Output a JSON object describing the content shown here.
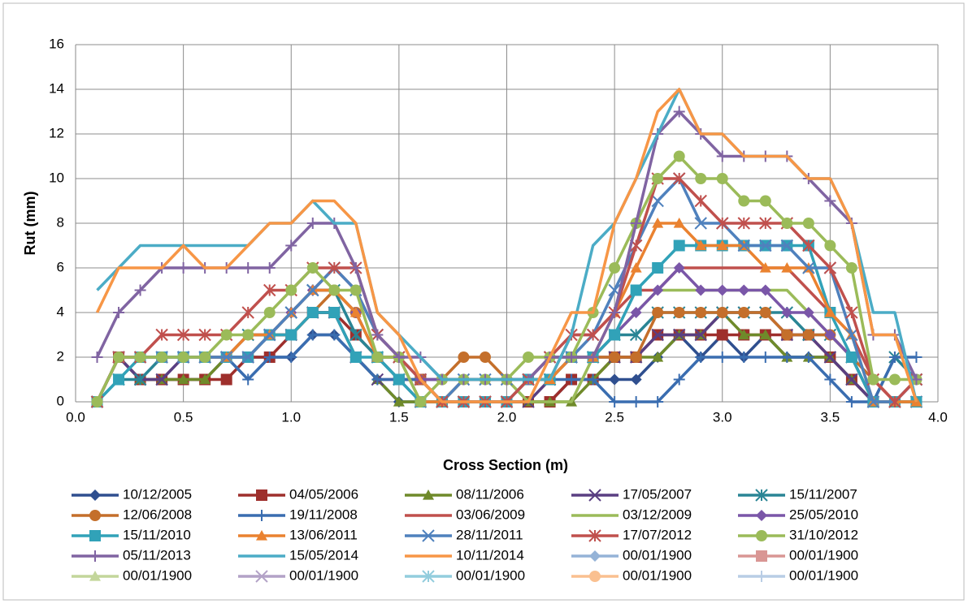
{
  "chart_data": {
    "type": "line",
    "x_label": "Cross Section (m)",
    "y_label": "Rut (mm)",
    "x": [
      0.1,
      0.2,
      0.3,
      0.4,
      0.5,
      0.6,
      0.7,
      0.8,
      0.9,
      1.0,
      1.1,
      1.2,
      1.3,
      1.4,
      1.5,
      1.6,
      1.7,
      1.8,
      1.9,
      2.0,
      2.1,
      2.2,
      2.3,
      2.4,
      2.5,
      2.6,
      2.7,
      2.8,
      2.9,
      3.0,
      3.1,
      3.2,
      3.3,
      3.4,
      3.5,
      3.6,
      3.7,
      3.8,
      3.9
    ],
    "xlim": [
      0,
      4
    ],
    "xticks": [
      {
        "value": 0,
        "label": "0.0"
      },
      {
        "value": 0.5,
        "label": "0.5"
      },
      {
        "value": 1,
        "label": "1.0"
      },
      {
        "value": 1.5,
        "label": "1.5"
      },
      {
        "value": 2,
        "label": "2.0"
      },
      {
        "value": 2.5,
        "label": "2.5"
      },
      {
        "value": 3,
        "label": "3.0"
      },
      {
        "value": 3.5,
        "label": "3.5"
      },
      {
        "value": 4,
        "label": "4.0"
      }
    ],
    "ylim": [
      0,
      16
    ],
    "yticks": [
      0,
      2,
      4,
      6,
      8,
      10,
      12,
      14,
      16
    ],
    "grid": true,
    "legend": "bottom",
    "series": [
      {
        "name": "10/12/2005",
        "color": "#2f4f8f",
        "marker": "diamond",
        "values": [
          0,
          2,
          1,
          1,
          1,
          1,
          2,
          2,
          2,
          2,
          3,
          3,
          2,
          1,
          0,
          0,
          0,
          0,
          0,
          0,
          0,
          0,
          1,
          1,
          1,
          1,
          2,
          3,
          2,
          3,
          2,
          3,
          2,
          2,
          2,
          1,
          0,
          0,
          0
        ]
      },
      {
        "name": "04/05/2006",
        "color": "#9e2f2c",
        "marker": "square",
        "values": [
          0,
          2,
          1,
          1,
          1,
          1,
          1,
          2,
          2,
          3,
          4,
          4,
          3,
          2,
          1,
          1,
          0,
          0,
          0,
          0,
          0,
          0,
          1,
          1,
          2,
          2,
          3,
          3,
          3,
          3,
          3,
          3,
          3,
          3,
          2,
          1,
          0,
          0,
          0
        ]
      },
      {
        "name": "08/11/2006",
        "color": "#6f8a2a",
        "marker": "triangle",
        "values": [
          0,
          2,
          1,
          1,
          1,
          1,
          2,
          2,
          3,
          3,
          4,
          4,
          2,
          1,
          0,
          0,
          0,
          0,
          0,
          0,
          0,
          0,
          0,
          1,
          2,
          2,
          2,
          3,
          3,
          4,
          3,
          3,
          2,
          2,
          2,
          1,
          0,
          0,
          0
        ]
      },
      {
        "name": "17/05/2007",
        "color": "#5a3f82",
        "marker": "x",
        "values": [
          0,
          2,
          1,
          1,
          2,
          2,
          2,
          2,
          3,
          3,
          4,
          4,
          2,
          1,
          1,
          0,
          0,
          0,
          0,
          0,
          0,
          1,
          2,
          2,
          2,
          2,
          3,
          3,
          3,
          4,
          4,
          4,
          3,
          3,
          2,
          1,
          0,
          0,
          0
        ]
      },
      {
        "name": "15/11/2007",
        "color": "#2a8595",
        "marker": "star",
        "values": [
          0,
          1,
          1,
          2,
          2,
          2,
          2,
          3,
          3,
          4,
          5,
          5,
          3,
          2,
          1,
          1,
          0,
          0,
          0,
          0,
          1,
          1,
          2,
          2,
          3,
          3,
          4,
          4,
          4,
          4,
          4,
          4,
          4,
          3,
          3,
          2,
          0,
          2,
          1
        ]
      },
      {
        "name": "12/06/2008",
        "color": "#c46f2b",
        "marker": "circle",
        "values": [
          0,
          2,
          2,
          2,
          2,
          2,
          2,
          2,
          3,
          3,
          4,
          5,
          4,
          2,
          2,
          1,
          1,
          2,
          2,
          1,
          1,
          1,
          2,
          2,
          2,
          2,
          4,
          4,
          4,
          4,
          4,
          4,
          3,
          3,
          3,
          2,
          1,
          0,
          0
        ]
      },
      {
        "name": "19/11/2008",
        "color": "#3a6db0",
        "marker": "plus",
        "values": [
          0,
          2,
          2,
          2,
          2,
          2,
          2,
          1,
          2,
          2,
          3,
          3,
          2,
          1,
          1,
          1,
          1,
          1,
          1,
          1,
          1,
          1,
          1,
          1,
          0,
          0,
          0,
          1,
          2,
          2,
          2,
          2,
          2,
          2,
          1,
          0,
          0,
          2,
          2
        ]
      },
      {
        "name": "03/06/2009",
        "color": "#c0504d",
        "values": [
          0,
          2,
          2,
          2,
          2,
          2,
          2,
          2,
          3,
          4,
          5,
          6,
          5,
          3,
          2,
          1,
          0,
          1,
          1,
          1,
          1,
          1,
          3,
          3,
          4,
          5,
          5,
          6,
          6,
          6,
          6,
          6,
          6,
          5,
          4,
          3,
          1,
          0,
          0
        ]
      },
      {
        "name": "03/12/2009",
        "color": "#9bbb59",
        "values": [
          0,
          2,
          2,
          2,
          2,
          2,
          2,
          3,
          3,
          4,
          5,
          5,
          4,
          2,
          2,
          0,
          0,
          1,
          1,
          1,
          0,
          0,
          0,
          2,
          3,
          4,
          5,
          5,
          5,
          5,
          5,
          5,
          5,
          4,
          3,
          2,
          0,
          0,
          0
        ]
      },
      {
        "name": "25/05/2010",
        "color": "#7a56a8",
        "marker": "diamond",
        "values": [
          0,
          2,
          2,
          2,
          2,
          2,
          2,
          3,
          3,
          4,
          5,
          5,
          4,
          2,
          2,
          1,
          1,
          1,
          1,
          1,
          1,
          2,
          2,
          2,
          3,
          4,
          5,
          6,
          5,
          5,
          5,
          5,
          4,
          4,
          3,
          2,
          0,
          0,
          1
        ]
      },
      {
        "name": "15/11/2010",
        "color": "#31a2b8",
        "marker": "square",
        "values": [
          0,
          1,
          2,
          2,
          2,
          2,
          2,
          2,
          3,
          3,
          4,
          4,
          2,
          2,
          1,
          0,
          0,
          0,
          0,
          0,
          1,
          1,
          2,
          2,
          3,
          5,
          6,
          7,
          7,
          7,
          7,
          7,
          7,
          7,
          4,
          2,
          0,
          0,
          0
        ]
      },
      {
        "name": "13/06/2011",
        "color": "#ea8230",
        "marker": "triangle",
        "values": [
          0,
          2,
          2,
          2,
          2,
          2,
          2,
          3,
          3,
          4,
          5,
          5,
          4,
          2,
          2,
          0,
          0,
          1,
          1,
          1,
          1,
          1,
          2,
          2,
          4,
          6,
          8,
          8,
          7,
          7,
          7,
          6,
          6,
          6,
          4,
          3,
          0,
          0,
          0
        ]
      },
      {
        "name": "28/11/2011",
        "color": "#4f81bd",
        "marker": "x",
        "values": [
          0,
          2,
          2,
          2,
          2,
          2,
          2,
          2,
          3,
          4,
          5,
          6,
          5,
          3,
          2,
          1,
          0,
          1,
          1,
          1,
          1,
          2,
          2,
          3,
          5,
          7,
          9,
          10,
          8,
          8,
          7,
          7,
          7,
          6,
          6,
          3,
          0,
          0,
          1
        ]
      },
      {
        "name": "17/07/2012",
        "color": "#c0504d",
        "marker": "star",
        "values": [
          0,
          2,
          2,
          3,
          3,
          3,
          3,
          4,
          5,
          5,
          6,
          6,
          6,
          3,
          2,
          1,
          0,
          0,
          0,
          0,
          1,
          2,
          3,
          3,
          4,
          7,
          10,
          10,
          9,
          8,
          8,
          8,
          8,
          7,
          6,
          4,
          1,
          0,
          1
        ]
      },
      {
        "name": "31/10/2012",
        "color": "#9bbb59",
        "marker": "circle",
        "values": [
          0,
          2,
          2,
          2,
          2,
          2,
          3,
          3,
          4,
          5,
          6,
          5,
          5,
          2,
          2,
          0,
          1,
          1,
          1,
          1,
          2,
          2,
          2,
          4,
          6,
          8,
          10,
          11,
          10,
          10,
          9,
          9,
          8,
          8,
          7,
          6,
          1,
          1,
          1
        ]
      },
      {
        "name": "05/11/2013",
        "color": "#8064a2",
        "marker": "plus",
        "values": [
          2,
          4,
          5,
          6,
          6,
          6,
          6,
          6,
          6,
          7,
          8,
          8,
          6,
          3,
          2,
          2,
          1,
          1,
          1,
          1,
          1,
          2,
          2,
          2,
          4,
          8,
          12,
          13,
          12,
          11,
          11,
          11,
          11,
          10,
          9,
          8,
          3,
          3,
          1
        ]
      },
      {
        "name": "15/05/2014",
        "color": "#4bacc6",
        "values": [
          5,
          6,
          7,
          7,
          7,
          7,
          7,
          7,
          8,
          8,
          9,
          8,
          8,
          4,
          3,
          2,
          1,
          1,
          1,
          1,
          1,
          1,
          3,
          7,
          8,
          10,
          12,
          14,
          12,
          12,
          11,
          11,
          11,
          10,
          10,
          8,
          4,
          4,
          0
        ]
      },
      {
        "name": "10/11/2014",
        "color": "#f79646",
        "values": [
          4,
          6,
          6,
          6,
          7,
          6,
          6,
          7,
          8,
          8,
          9,
          9,
          8,
          4,
          3,
          1,
          0,
          0,
          0,
          0,
          0,
          2,
          4,
          4,
          8,
          10,
          13,
          14,
          12,
          12,
          11,
          11,
          11,
          10,
          10,
          8,
          3,
          3,
          0
        ]
      },
      {
        "name": "00/01/1900",
        "color": "#95b3d7",
        "marker": "diamond",
        "values": [
          null,
          null,
          null,
          null,
          null,
          null,
          null,
          null,
          null,
          null,
          null,
          null,
          null,
          null,
          null,
          null,
          null,
          null,
          null,
          null,
          null,
          null,
          null,
          null,
          null,
          null,
          null,
          null,
          null,
          null,
          null,
          null,
          null,
          null,
          null,
          null,
          null,
          null,
          null
        ]
      },
      {
        "name": "00/01/1900",
        "color": "#d99694",
        "marker": "square",
        "values": [
          null,
          null,
          null,
          null,
          null,
          null,
          null,
          null,
          null,
          null,
          null,
          null,
          null,
          null,
          null,
          null,
          null,
          null,
          null,
          null,
          null,
          null,
          null,
          null,
          null,
          null,
          null,
          null,
          null,
          null,
          null,
          null,
          null,
          null,
          null,
          null,
          null,
          null,
          null
        ]
      },
      {
        "name": "00/01/1900",
        "color": "#c3d69b",
        "marker": "triangle",
        "values": [
          null,
          null,
          null,
          null,
          null,
          null,
          null,
          null,
          null,
          null,
          null,
          null,
          null,
          null,
          null,
          null,
          null,
          null,
          null,
          null,
          null,
          null,
          null,
          null,
          null,
          null,
          null,
          null,
          null,
          null,
          null,
          null,
          null,
          null,
          null,
          null,
          null,
          null,
          null
        ]
      },
      {
        "name": "00/01/1900",
        "color": "#b3a2c7",
        "marker": "x",
        "values": [
          null,
          null,
          null,
          null,
          null,
          null,
          null,
          null,
          null,
          null,
          null,
          null,
          null,
          null,
          null,
          null,
          null,
          null,
          null,
          null,
          null,
          null,
          null,
          null,
          null,
          null,
          null,
          null,
          null,
          null,
          null,
          null,
          null,
          null,
          null,
          null,
          null,
          null,
          null
        ]
      },
      {
        "name": "00/01/1900",
        "color": "#93cddd",
        "marker": "star",
        "values": [
          null,
          null,
          null,
          null,
          null,
          null,
          null,
          null,
          null,
          null,
          null,
          null,
          null,
          null,
          null,
          null,
          null,
          null,
          null,
          null,
          null,
          null,
          null,
          null,
          null,
          null,
          null,
          null,
          null,
          null,
          null,
          null,
          null,
          null,
          null,
          null,
          null,
          null,
          null
        ]
      },
      {
        "name": "00/01/1900",
        "color": "#fac090",
        "marker": "circle",
        "values": [
          null,
          null,
          null,
          null,
          null,
          null,
          null,
          null,
          null,
          null,
          null,
          null,
          null,
          null,
          null,
          null,
          null,
          null,
          null,
          null,
          null,
          null,
          null,
          null,
          null,
          null,
          null,
          null,
          null,
          null,
          null,
          null,
          null,
          null,
          null,
          null,
          null,
          null,
          null
        ]
      },
      {
        "name": "00/01/1900",
        "color": "#b9cde5",
        "marker": "plus",
        "values": [
          null,
          null,
          null,
          null,
          null,
          null,
          null,
          null,
          null,
          null,
          null,
          null,
          null,
          null,
          null,
          null,
          null,
          null,
          null,
          null,
          null,
          null,
          null,
          null,
          null,
          null,
          null,
          null,
          null,
          null,
          null,
          null,
          null,
          null,
          null,
          null,
          null,
          null,
          null
        ]
      }
    ]
  }
}
